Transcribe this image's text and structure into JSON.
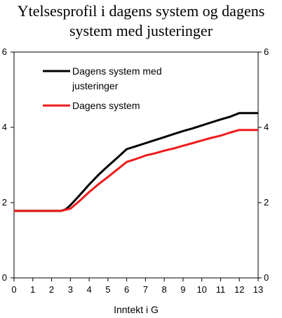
{
  "chart_data": {
    "type": "line",
    "title_lines": [
      "Ytelsesprofil i dagens system og dagens",
      "system med justeringer"
    ],
    "xlabel": "Inntekt i G",
    "ylabel": "",
    "xlim": [
      0,
      13
    ],
    "ylim": [
      0,
      6
    ],
    "x_ticks": [
      0,
      1,
      2,
      3,
      4,
      5,
      6,
      7,
      8,
      9,
      10,
      11,
      12,
      13
    ],
    "x_tick_labels": [
      "0",
      "1",
      "2",
      "3",
      "4",
      "5",
      "6",
      "7",
      "8",
      "9",
      "10",
      "11",
      "12",
      "13"
    ],
    "y_ticks": [
      0,
      2,
      4,
      6
    ],
    "y_tick_labels": [
      "0",
      "2",
      "4",
      "6"
    ],
    "grid": false,
    "legend_position": "top-left",
    "legend_entries": [
      "Dagens system med justeringer",
      "Dagens system"
    ],
    "legend_lines": [
      [
        "Dagens system med",
        "justeringer"
      ],
      [
        "Dagens system"
      ]
    ],
    "series": [
      {
        "name": "Dagens system med justeringer",
        "color": "#000000",
        "x": [
          0,
          2.5,
          2.75,
          3,
          3.5,
          4,
          4.5,
          5,
          5.5,
          6,
          6.5,
          7,
          7.5,
          8,
          8.5,
          9,
          9.5,
          10,
          10.5,
          11,
          11.5,
          12,
          12.5,
          13
        ],
        "y": [
          1.78,
          1.78,
          1.82,
          1.93,
          2.2,
          2.48,
          2.74,
          2.97,
          3.19,
          3.42,
          3.5,
          3.58,
          3.66,
          3.74,
          3.82,
          3.9,
          3.97,
          4.05,
          4.13,
          4.21,
          4.28,
          4.38,
          4.38,
          4.38
        ]
      },
      {
        "name": "Dagens system",
        "color": "#ee1c1c",
        "x": [
          0,
          2.5,
          3,
          3.5,
          4,
          4.5,
          5,
          5.5,
          6,
          6.5,
          7,
          7.5,
          8,
          8.5,
          9,
          9.5,
          10,
          10.5,
          11,
          11.5,
          12,
          12.5,
          13
        ],
        "y": [
          1.78,
          1.78,
          1.84,
          2.05,
          2.28,
          2.49,
          2.68,
          2.88,
          3.08,
          3.16,
          3.25,
          3.31,
          3.38,
          3.44,
          3.51,
          3.58,
          3.65,
          3.72,
          3.78,
          3.86,
          3.93,
          3.93,
          3.93
        ]
      }
    ]
  }
}
